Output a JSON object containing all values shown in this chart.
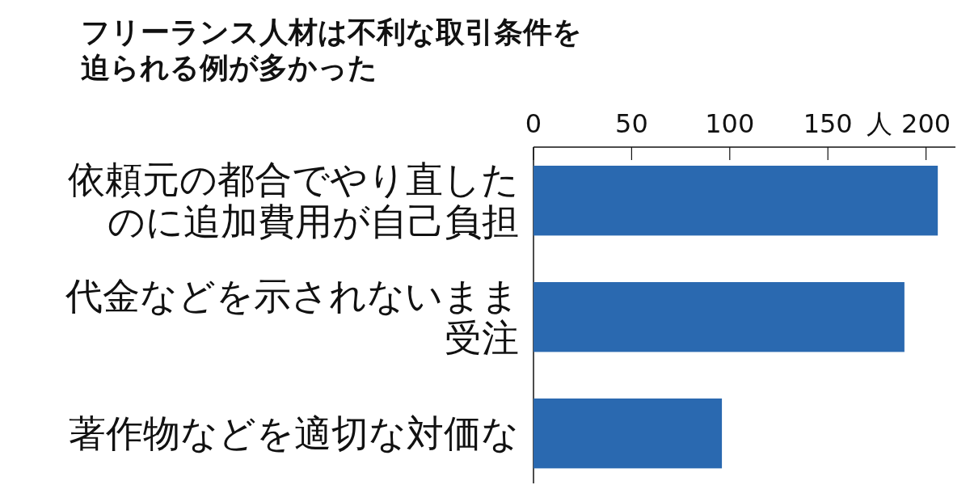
{
  "chart_data": {
    "type": "bar",
    "orientation": "horizontal",
    "title": "フリーランス人材は不利な取引条件を迫られる例が多かった",
    "xlabel": "人",
    "categories": [
      "依頼元の都合でやり直したのに追加費用が自己負担",
      "代金などを示されないまま受注",
      "著作物などを適切な対価な"
    ],
    "values": [
      206,
      189,
      96
    ],
    "color": "#2a69b0",
    "xlim": [
      0,
      215
    ],
    "xticks": [
      0,
      50,
      100,
      150,
      200
    ],
    "grid": false
  }
}
